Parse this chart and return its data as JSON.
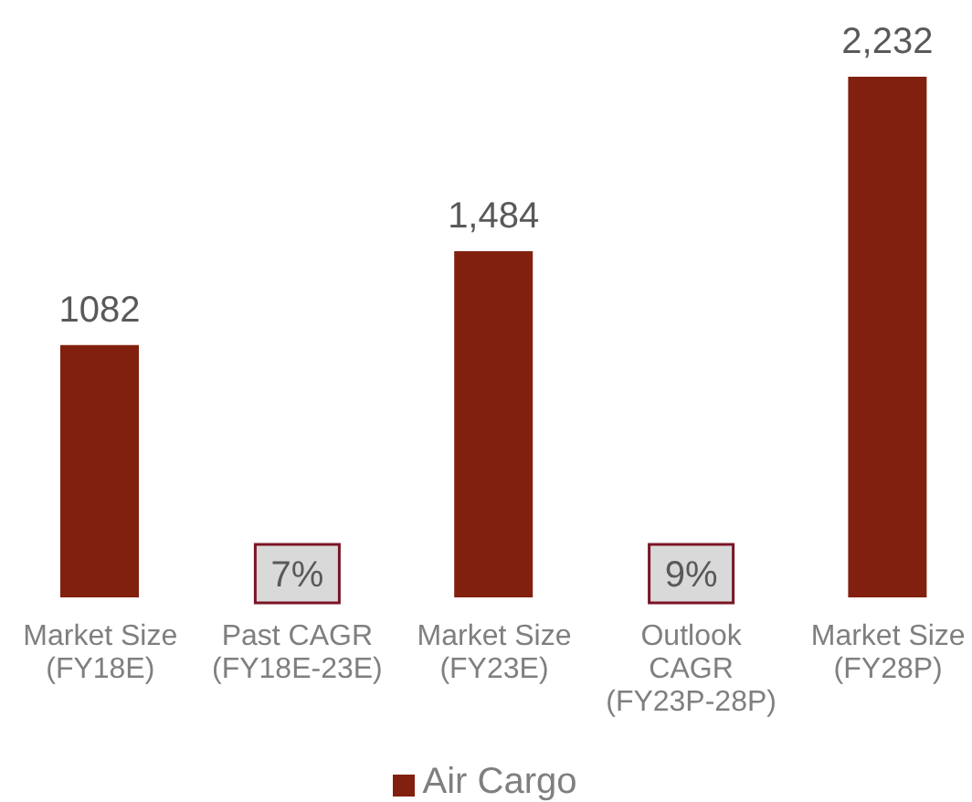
{
  "chart_data": {
    "type": "bar",
    "categories": [
      "Market Size (FY18E)",
      "Past CAGR (FY18E-23E)",
      "Market Size (FY23E)",
      "Outlook CAGR (FY23P-28P)",
      "Market Size (FY28P)"
    ],
    "series": [
      {
        "name": "Air Cargo",
        "color": "#82200f",
        "values": [
          1082,
          null,
          1484,
          null,
          2232
        ],
        "value_labels": [
          "1082",
          null,
          "1,484",
          null,
          "2,232"
        ]
      }
    ],
    "annotations": [
      "7%",
      "9%"
    ],
    "legend": "bottom",
    "tick_labels": "x"
  }
}
